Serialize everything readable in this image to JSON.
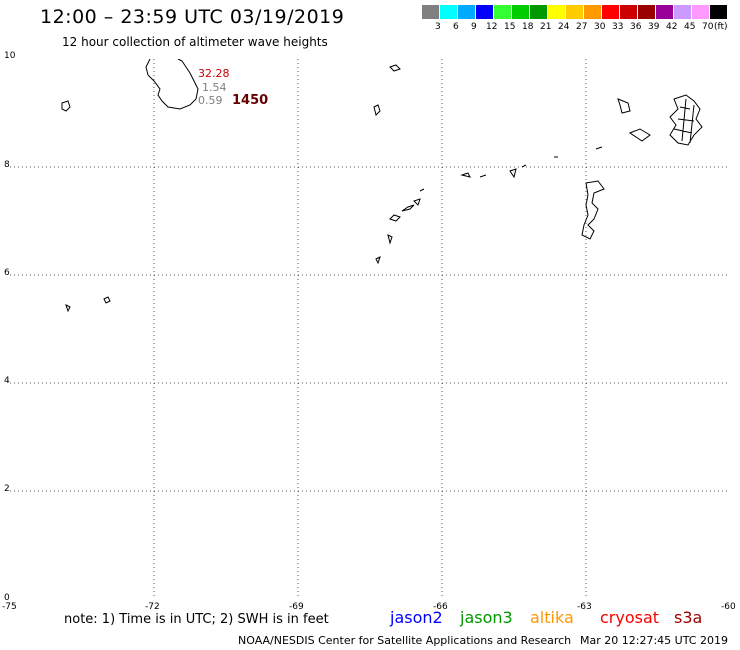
{
  "title": "12:00 – 23:59 UTC 03/19/2019",
  "subtitle": "12 hour collection of altimeter wave heights",
  "scale": {
    "colors": [
      "#808080",
      "#00ffff",
      "#00aaff",
      "#0000ff",
      "#33ff33",
      "#00cc00",
      "#009900",
      "#ffff00",
      "#ffcc00",
      "#ff9900",
      "#ff0000",
      "#cc0000",
      "#990000",
      "#990099",
      "#cc99ff",
      "#ff99ff",
      "#000000"
    ],
    "labels": [
      "3",
      "6",
      "9",
      "12",
      "15",
      "18",
      "21",
      "24",
      "27",
      "30",
      "33",
      "36",
      "39",
      "42",
      "45",
      "70",
      "(ft)"
    ]
  },
  "map": {
    "lon_range": [
      -75,
      -60
    ],
    "lat_range": [
      0,
      10
    ],
    "x_ticks": [
      "-75",
      "-72",
      "-69",
      "-66",
      "-63",
      "-60"
    ],
    "y_ticks": [
      "10",
      "8",
      "6",
      "4",
      "2",
      "0"
    ],
    "grid": true
  },
  "annotations": {
    "v1": {
      "text": "32.28",
      "color": "#cc0000"
    },
    "v2": {
      "text": "1.54",
      "color": "#808080"
    },
    "v3": {
      "text": "0.59",
      "color": "#808080"
    },
    "count": {
      "text": "1450",
      "color": "#660000"
    }
  },
  "note": "note:  1) Time is in UTC;  2) SWH is in feet",
  "satellites": [
    {
      "name": "jason2",
      "color": "#0000ff"
    },
    {
      "name": "jason3",
      "color": "#009900"
    },
    {
      "name": "altika",
      "color": "#ff9900"
    },
    {
      "name": "cryosat",
      "color": "#ff0000"
    },
    {
      "name": "s3a",
      "color": "#990000"
    }
  ],
  "credit": "NOAA/NESDIS Center for Satellite Applications and Research",
  "timestamp": "Mar 20 12:27:45 UTC 2019"
}
